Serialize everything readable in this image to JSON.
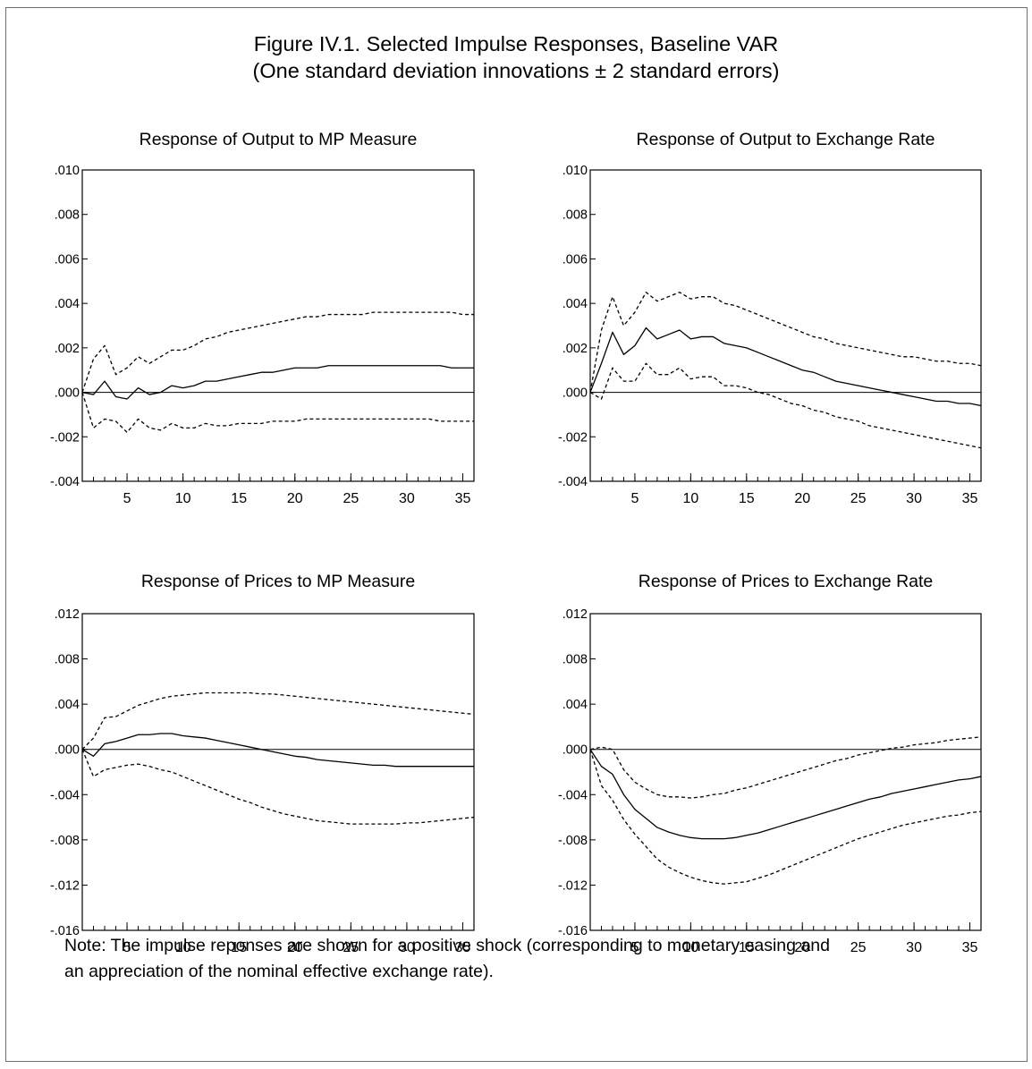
{
  "figure": {
    "title_line1": "Figure IV.1. Selected Impulse Responses, Baseline VAR",
    "title_line2": "(One standard deviation innovations ± 2 standard errors)",
    "note_line1": "Note: The impulse reponses are shown for a positive shock (corresponding to monetary easing and",
    "note_line2": "an appreciation of the nominal effective exchange rate)."
  },
  "style": {
    "line_color": "#000000",
    "zero_line_color": "#000000",
    "frame_color": "#6f6f6f"
  },
  "chart_data": [
    {
      "type": "line",
      "title": "Response of Output to MP Measure",
      "x": [
        1,
        2,
        3,
        4,
        5,
        6,
        7,
        8,
        9,
        10,
        11,
        12,
        13,
        14,
        15,
        16,
        17,
        18,
        19,
        20,
        21,
        22,
        23,
        24,
        25,
        26,
        27,
        28,
        29,
        30,
        31,
        32,
        33,
        34,
        35,
        36
      ],
      "xticks": [
        5,
        10,
        15,
        20,
        25,
        30,
        35
      ],
      "xlim": [
        1,
        36
      ],
      "ylim": [
        -0.004,
        0.01
      ],
      "yticks": [
        -0.004,
        -0.002,
        0.0,
        0.002,
        0.004,
        0.006,
        0.008,
        0.01
      ],
      "ytick_labels": [
        "-.004",
        "-.002",
        ".000",
        ".002",
        ".004",
        ".006",
        ".008",
        ".010"
      ],
      "zero_line": true,
      "series": [
        {
          "role": "response",
          "style": "solid",
          "values": [
            0.0,
            -0.0001,
            0.0005,
            -0.0002,
            -0.0003,
            0.0002,
            -0.0001,
            0.0,
            0.0003,
            0.0002,
            0.0003,
            0.0005,
            0.0005,
            0.0006,
            0.0007,
            0.0008,
            0.0009,
            0.0009,
            0.001,
            0.0011,
            0.0011,
            0.0011,
            0.0012,
            0.0012,
            0.0012,
            0.0012,
            0.0012,
            0.0012,
            0.0012,
            0.0012,
            0.0012,
            0.0012,
            0.0012,
            0.0011,
            0.0011,
            0.0011
          ]
        },
        {
          "role": "upper band (+2 s.e.)",
          "style": "dashed",
          "values": [
            0.0,
            0.0015,
            0.0021,
            0.0008,
            0.0011,
            0.0016,
            0.0013,
            0.0016,
            0.0019,
            0.0019,
            0.0021,
            0.0024,
            0.0025,
            0.0027,
            0.0028,
            0.0029,
            0.003,
            0.0031,
            0.0032,
            0.0033,
            0.0034,
            0.0034,
            0.0035,
            0.0035,
            0.0035,
            0.0035,
            0.0036,
            0.0036,
            0.0036,
            0.0036,
            0.0036,
            0.0036,
            0.0036,
            0.0036,
            0.0035,
            0.0035
          ]
        },
        {
          "role": "lower band (-2 s.e.)",
          "style": "dashed",
          "values": [
            0.0,
            -0.0016,
            -0.0012,
            -0.0013,
            -0.0018,
            -0.0012,
            -0.0016,
            -0.0017,
            -0.0014,
            -0.0016,
            -0.0016,
            -0.0014,
            -0.0015,
            -0.0015,
            -0.0014,
            -0.0014,
            -0.0014,
            -0.0013,
            -0.0013,
            -0.0013,
            -0.0012,
            -0.0012,
            -0.0012,
            -0.0012,
            -0.0012,
            -0.0012,
            -0.0012,
            -0.0012,
            -0.0012,
            -0.0012,
            -0.0012,
            -0.0012,
            -0.0013,
            -0.0013,
            -0.0013,
            -0.0013
          ]
        }
      ]
    },
    {
      "type": "line",
      "title": "Response of Output to Exchange Rate",
      "x": [
        1,
        2,
        3,
        4,
        5,
        6,
        7,
        8,
        9,
        10,
        11,
        12,
        13,
        14,
        15,
        16,
        17,
        18,
        19,
        20,
        21,
        22,
        23,
        24,
        25,
        26,
        27,
        28,
        29,
        30,
        31,
        32,
        33,
        34,
        35,
        36
      ],
      "xticks": [
        5,
        10,
        15,
        20,
        25,
        30,
        35
      ],
      "xlim": [
        1,
        36
      ],
      "ylim": [
        -0.004,
        0.01
      ],
      "yticks": [
        -0.004,
        -0.002,
        0.0,
        0.002,
        0.004,
        0.006,
        0.008,
        0.01
      ],
      "ytick_labels": [
        "-.004",
        "-.002",
        ".000",
        ".002",
        ".004",
        ".006",
        ".008",
        ".010"
      ],
      "zero_line": true,
      "series": [
        {
          "role": "response",
          "style": "solid",
          "values": [
            0.0,
            0.0013,
            0.0027,
            0.0017,
            0.0021,
            0.0029,
            0.0024,
            0.0026,
            0.0028,
            0.0024,
            0.0025,
            0.0025,
            0.0022,
            0.0021,
            0.002,
            0.0018,
            0.0016,
            0.0014,
            0.0012,
            0.001,
            0.0009,
            0.0007,
            0.0005,
            0.0004,
            0.0003,
            0.0002,
            0.0001,
            0.0,
            -0.0001,
            -0.0002,
            -0.0003,
            -0.0004,
            -0.0004,
            -0.0005,
            -0.0005,
            -0.0006
          ]
        },
        {
          "role": "upper band (+2 s.e.)",
          "style": "dashed",
          "values": [
            0.0,
            0.0028,
            0.0043,
            0.003,
            0.0036,
            0.0045,
            0.0041,
            0.0043,
            0.0045,
            0.0042,
            0.0043,
            0.0043,
            0.004,
            0.0039,
            0.0037,
            0.0035,
            0.0033,
            0.0031,
            0.0029,
            0.0027,
            0.0025,
            0.0024,
            0.0022,
            0.0021,
            0.002,
            0.0019,
            0.0018,
            0.0017,
            0.0016,
            0.0016,
            0.0015,
            0.0014,
            0.0014,
            0.0013,
            0.0013,
            0.0012
          ]
        },
        {
          "role": "lower band (-2 s.e.)",
          "style": "dashed",
          "values": [
            0.0,
            -0.0003,
            0.0011,
            0.0005,
            0.0005,
            0.0013,
            0.0008,
            0.0008,
            0.0011,
            0.0006,
            0.0007,
            0.0007,
            0.0003,
            0.0003,
            0.0002,
            0.0,
            -0.0001,
            -0.0003,
            -0.0005,
            -0.0006,
            -0.0008,
            -0.0009,
            -0.0011,
            -0.0012,
            -0.0013,
            -0.0015,
            -0.0016,
            -0.0017,
            -0.0018,
            -0.0019,
            -0.002,
            -0.0021,
            -0.0022,
            -0.0023,
            -0.0024,
            -0.0025
          ]
        }
      ]
    },
    {
      "type": "line",
      "title": "Response of Prices to MP Measure",
      "x": [
        1,
        2,
        3,
        4,
        5,
        6,
        7,
        8,
        9,
        10,
        11,
        12,
        13,
        14,
        15,
        16,
        17,
        18,
        19,
        20,
        21,
        22,
        23,
        24,
        25,
        26,
        27,
        28,
        29,
        30,
        31,
        32,
        33,
        34,
        35,
        36
      ],
      "xticks": [
        5,
        10,
        15,
        20,
        25,
        30,
        35
      ],
      "xlim": [
        1,
        36
      ],
      "ylim": [
        -0.016,
        0.012
      ],
      "yticks": [
        -0.016,
        -0.012,
        -0.008,
        -0.004,
        0.0,
        0.004,
        0.008,
        0.012
      ],
      "ytick_labels": [
        "-.016",
        "-.012",
        "-.008",
        "-.004",
        ".000",
        ".004",
        ".008",
        ".012"
      ],
      "zero_line": true,
      "series": [
        {
          "role": "response",
          "style": "solid",
          "values": [
            0.0,
            -0.0006,
            0.0005,
            0.0007,
            0.001,
            0.0013,
            0.0013,
            0.0014,
            0.0014,
            0.0012,
            0.0011,
            0.001,
            0.0008,
            0.0006,
            0.0004,
            0.0002,
            0.0,
            -0.0002,
            -0.0004,
            -0.0006,
            -0.0007,
            -0.0009,
            -0.001,
            -0.0011,
            -0.0012,
            -0.0013,
            -0.0014,
            -0.0014,
            -0.0015,
            -0.0015,
            -0.0015,
            -0.0015,
            -0.0015,
            -0.0015,
            -0.0015,
            -0.0015
          ]
        },
        {
          "role": "upper band (+2 s.e.)",
          "style": "dashed",
          "values": [
            0.0,
            0.001,
            0.0028,
            0.0029,
            0.0034,
            0.0039,
            0.0042,
            0.0045,
            0.0047,
            0.0048,
            0.0049,
            0.005,
            0.005,
            0.005,
            0.005,
            0.005,
            0.0049,
            0.0049,
            0.0048,
            0.0047,
            0.0046,
            0.0045,
            0.0044,
            0.0043,
            0.0042,
            0.0041,
            0.004,
            0.0039,
            0.0038,
            0.0037,
            0.0036,
            0.0035,
            0.0034,
            0.0033,
            0.0032,
            0.0031
          ]
        },
        {
          "role": "lower band (-2 s.e.)",
          "style": "dashed",
          "values": [
            0.0,
            -0.0024,
            -0.0018,
            -0.0016,
            -0.0014,
            -0.0013,
            -0.0015,
            -0.0018,
            -0.002,
            -0.0024,
            -0.0028,
            -0.0032,
            -0.0036,
            -0.004,
            -0.0044,
            -0.0047,
            -0.0051,
            -0.0054,
            -0.0057,
            -0.0059,
            -0.0061,
            -0.0063,
            -0.0064,
            -0.0065,
            -0.0066,
            -0.0066,
            -0.0066,
            -0.0066,
            -0.0066,
            -0.0065,
            -0.0065,
            -0.0064,
            -0.0063,
            -0.0062,
            -0.0061,
            -0.006
          ]
        }
      ]
    },
    {
      "type": "line",
      "title": "Response of Prices to Exchange Rate",
      "x": [
        1,
        2,
        3,
        4,
        5,
        6,
        7,
        8,
        9,
        10,
        11,
        12,
        13,
        14,
        15,
        16,
        17,
        18,
        19,
        20,
        21,
        22,
        23,
        24,
        25,
        26,
        27,
        28,
        29,
        30,
        31,
        32,
        33,
        34,
        35,
        36
      ],
      "xticks": [
        5,
        10,
        15,
        20,
        25,
        30,
        35
      ],
      "xlim": [
        1,
        36
      ],
      "ylim": [
        -0.016,
        0.012
      ],
      "yticks": [
        -0.016,
        -0.012,
        -0.008,
        -0.004,
        0.0,
        0.004,
        0.008,
        0.012
      ],
      "ytick_labels": [
        "-.016",
        "-.012",
        "-.008",
        "-.004",
        ".000",
        ".004",
        ".008",
        ".012"
      ],
      "zero_line": true,
      "series": [
        {
          "role": "response",
          "style": "solid",
          "values": [
            0.0,
            -0.0015,
            -0.0022,
            -0.004,
            -0.0053,
            -0.0061,
            -0.0069,
            -0.0073,
            -0.0076,
            -0.0078,
            -0.0079,
            -0.0079,
            -0.0079,
            -0.0078,
            -0.0076,
            -0.0074,
            -0.0071,
            -0.0068,
            -0.0065,
            -0.0062,
            -0.0059,
            -0.0056,
            -0.0053,
            -0.005,
            -0.0047,
            -0.0044,
            -0.0042,
            -0.0039,
            -0.0037,
            -0.0035,
            -0.0033,
            -0.0031,
            -0.0029,
            -0.0027,
            -0.0026,
            -0.0024
          ]
        },
        {
          "role": "upper band (+2 s.e.)",
          "style": "dashed",
          "values": [
            0.0,
            0.0002,
            0.0,
            -0.0018,
            -0.0029,
            -0.0035,
            -0.004,
            -0.0042,
            -0.0042,
            -0.0043,
            -0.0042,
            -0.004,
            -0.0039,
            -0.0036,
            -0.0034,
            -0.0031,
            -0.0028,
            -0.0025,
            -0.0022,
            -0.0019,
            -0.0016,
            -0.0013,
            -0.001,
            -0.0008,
            -0.0005,
            -0.0003,
            -0.0001,
            0.0001,
            0.0002,
            0.0004,
            0.0005,
            0.0006,
            0.0008,
            0.0009,
            0.001,
            0.0011
          ]
        },
        {
          "role": "lower band (-2 s.e.)",
          "style": "dashed",
          "values": [
            0.0,
            -0.0032,
            -0.0045,
            -0.0062,
            -0.0075,
            -0.0086,
            -0.0097,
            -0.0104,
            -0.0109,
            -0.0113,
            -0.0116,
            -0.0118,
            -0.0119,
            -0.0118,
            -0.0117,
            -0.0114,
            -0.0111,
            -0.0107,
            -0.0103,
            -0.0099,
            -0.0095,
            -0.0091,
            -0.0087,
            -0.0083,
            -0.0079,
            -0.0076,
            -0.0073,
            -0.007,
            -0.0067,
            -0.0065,
            -0.0063,
            -0.0061,
            -0.0059,
            -0.0058,
            -0.0056,
            -0.0055
          ]
        }
      ]
    }
  ]
}
